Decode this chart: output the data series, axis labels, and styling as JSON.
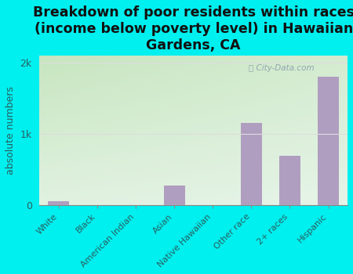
{
  "categories": [
    "White",
    "Black",
    "American Indian",
    "Asian",
    "Native Hawaiian",
    "Other race",
    "2+ races",
    "Hispanic"
  ],
  "values": [
    60,
    0,
    0,
    280,
    0,
    1150,
    700,
    1800
  ],
  "bar_color": "#b09ec0",
  "background_color": "#00efef",
  "title": "Breakdown of poor residents within races\n(income below poverty level) in Hawaiian\nGardens, CA",
  "title_fontsize": 12.5,
  "title_color": "#111111",
  "ylabel": "absolute numbers",
  "ylabel_fontsize": 9,
  "ylabel_color": "#2a6060",
  "tick_color": "#2a6060",
  "ylim": [
    0,
    2100
  ],
  "yticks": [
    0,
    1000,
    2000
  ],
  "ytick_labels": [
    "0",
    "1k",
    "2k"
  ],
  "watermark": "City-Data.com",
  "plot_grad_top_color": "#c8e6c0",
  "plot_grad_bottom_color": "#f8fff8",
  "grid_color": "#dddddd",
  "spine_color": "#888888"
}
